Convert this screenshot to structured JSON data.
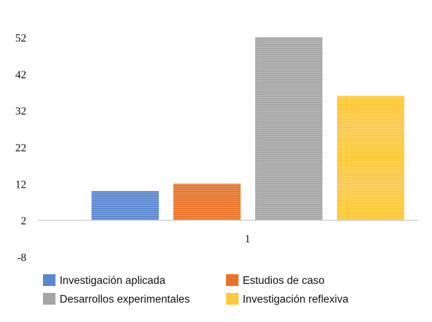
{
  "chart_data": {
    "type": "bar",
    "categories": [
      "1"
    ],
    "series": [
      {
        "name": "Investigación aplicada",
        "values": [
          10
        ],
        "color": "#5b87cf"
      },
      {
        "name": "Estudios de caso",
        "values": [
          12
        ],
        "color": "#e8742a"
      },
      {
        "name": "Desarrollos experimentales",
        "values": [
          52
        ],
        "color": "#a5a5a5"
      },
      {
        "name": "Investigación reflexiva",
        "values": [
          36
        ],
        "color": "#ffc83c"
      }
    ],
    "y_ticks": [
      -8,
      2,
      12,
      22,
      32,
      42,
      52
    ],
    "ylim": [
      -8,
      52
    ],
    "baseline": 2,
    "grid": false,
    "legend_position": "bottom",
    "title": "",
    "xlabel": "",
    "ylabel": ""
  }
}
